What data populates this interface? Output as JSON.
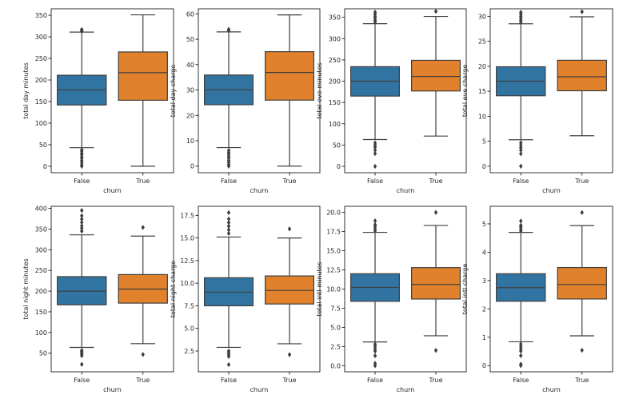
{
  "figure": {
    "type": "boxplot-grid",
    "colors": {
      "False": "#3274a1",
      "True": "#e1812c",
      "line": "#3f3f3f",
      "axes": "#000000"
    }
  },
  "chart_data": [
    {
      "type": "box",
      "xlabel": "churn",
      "ylabel": "total day minutes",
      "categories": [
        "False",
        "True"
      ],
      "ylim": [
        -15,
        365
      ],
      "yticks": [
        0,
        50,
        100,
        150,
        200,
        250,
        300,
        350
      ],
      "ytick_labels": [
        "0",
        "50",
        "100",
        "150",
        "200",
        "250",
        "300",
        "350"
      ],
      "boxes": [
        {
          "category": "False",
          "whislo": 43,
          "q1": 142,
          "med": 177,
          "q3": 211,
          "whishi": 311,
          "fliers": [
            0,
            3,
            8,
            13,
            18,
            22,
            27,
            30,
            35,
            38,
            313,
            315,
            317
          ]
        },
        {
          "category": "True",
          "whislo": 0,
          "q1": 153,
          "med": 217,
          "q3": 265,
          "whishi": 351,
          "fliers": []
        }
      ]
    },
    {
      "type": "box",
      "xlabel": "churn",
      "ylabel": "total day charge",
      "categories": [
        "False",
        "True"
      ],
      "ylim": [
        -2.6,
        62
      ],
      "yticks": [
        0,
        10,
        20,
        30,
        40,
        50,
        60
      ],
      "ytick_labels": [
        "0",
        "10",
        "20",
        "30",
        "40",
        "50",
        "60"
      ],
      "boxes": [
        {
          "category": "False",
          "whislo": 7.3,
          "q1": 24.2,
          "med": 30.1,
          "q3": 35.9,
          "whishi": 52.9,
          "fliers": [
            0,
            0.6,
            1.4,
            2.2,
            3.1,
            3.9,
            4.7,
            5.4,
            6.2,
            53.4,
            53.9
          ]
        },
        {
          "category": "True",
          "whislo": 0,
          "q1": 26,
          "med": 36.9,
          "q3": 45.1,
          "whishi": 59.6,
          "fliers": []
        }
      ]
    },
    {
      "type": "box",
      "xlabel": "churn",
      "ylabel": "total eve minutes",
      "categories": [
        "False",
        "True"
      ],
      "ylim": [
        -15,
        370
      ],
      "yticks": [
        0,
        50,
        100,
        150,
        200,
        250,
        300,
        350
      ],
      "ytick_labels": [
        "0",
        "50",
        "100",
        "150",
        "200",
        "250",
        "300",
        "350"
      ],
      "boxes": [
        {
          "category": "False",
          "whislo": 63,
          "q1": 165,
          "med": 200,
          "q3": 234,
          "whishi": 335,
          "fliers": [
            0,
            30,
            38,
            45,
            50,
            55,
            339,
            343,
            348,
            352,
            357,
            362
          ]
        },
        {
          "category": "True",
          "whislo": 71,
          "q1": 177,
          "med": 211,
          "q3": 249,
          "whishi": 352,
          "fliers": [
            364
          ]
        }
      ]
    },
    {
      "type": "box",
      "xlabel": "churn",
      "ylabel": "total eve charge",
      "categories": [
        "False",
        "True"
      ],
      "ylim": [
        -1.3,
        31.5
      ],
      "yticks": [
        0,
        5,
        10,
        15,
        20,
        25,
        30
      ],
      "ytick_labels": [
        "0",
        "5",
        "10",
        "15",
        "20",
        "25",
        "30"
      ],
      "boxes": [
        {
          "category": "False",
          "whislo": 5.3,
          "q1": 14.1,
          "med": 17,
          "q3": 19.9,
          "whishi": 28.5,
          "fliers": [
            0,
            2.5,
            3.2,
            3.7,
            4.2,
            4.7,
            28.8,
            29.2,
            29.6,
            30,
            30.4,
            30.8
          ]
        },
        {
          "category": "True",
          "whislo": 6.1,
          "q1": 15.1,
          "med": 17.9,
          "q3": 21.2,
          "whishi": 29.9,
          "fliers": [
            30.9
          ]
        }
      ]
    },
    {
      "type": "box",
      "xlabel": "churn",
      "ylabel": "total night minutes",
      "categories": [
        "False",
        "True"
      ],
      "ylim": [
        5,
        405
      ],
      "yticks": [
        50,
        100,
        150,
        200,
        250,
        300,
        350,
        400
      ],
      "ytick_labels": [
        "50",
        "100",
        "150",
        "200",
        "250",
        "300",
        "350",
        "400"
      ],
      "boxes": [
        {
          "category": "False",
          "whislo": 64,
          "q1": 167,
          "med": 200,
          "q3": 235,
          "whishi": 336,
          "fliers": [
            23,
            44,
            48,
            51,
            54,
            57,
            345,
            352,
            358,
            366,
            374,
            382,
            395
          ]
        },
        {
          "category": "True",
          "whislo": 73,
          "q1": 171,
          "med": 205,
          "q3": 240,
          "whishi": 333,
          "fliers": [
            47,
            354
          ]
        }
      ]
    },
    {
      "type": "box",
      "xlabel": "churn",
      "ylabel": "total night charge",
      "categories": [
        "False",
        "True"
      ],
      "ylim": [
        0.2,
        18.5
      ],
      "yticks": [
        2.5,
        5.0,
        7.5,
        10.0,
        12.5,
        15.0,
        17.5
      ],
      "ytick_labels": [
        "2.5",
        "5.0",
        "7.5",
        "10.0",
        "12.5",
        "15.0",
        "17.5"
      ],
      "boxes": [
        {
          "category": "False",
          "whislo": 2.9,
          "q1": 7.5,
          "med": 9.0,
          "q3": 10.6,
          "whishi": 15.1,
          "fliers": [
            1.0,
            1.9,
            2.1,
            2.3,
            2.5,
            15.5,
            15.9,
            16.3,
            16.7,
            17.1,
            17.8
          ]
        },
        {
          "category": "True",
          "whislo": 3.3,
          "q1": 7.7,
          "med": 9.2,
          "q3": 10.8,
          "whishi": 15.0,
          "fliers": [
            2.1,
            16.0
          ]
        }
      ]
    },
    {
      "type": "box",
      "xlabel": "churn",
      "ylabel": "total intl minutes",
      "categories": [
        "False",
        "True"
      ],
      "ylim": [
        -0.8,
        20.8
      ],
      "yticks": [
        0.0,
        2.5,
        5.0,
        7.5,
        10.0,
        12.5,
        15.0,
        17.5,
        20.0
      ],
      "ytick_labels": [
        "0.0",
        "2.5",
        "5.0",
        "7.5",
        "10.0",
        "12.5",
        "15.0",
        "17.5",
        "20.0"
      ],
      "boxes": [
        {
          "category": "False",
          "whislo": 3.1,
          "q1": 8.4,
          "med": 10.2,
          "q3": 12.0,
          "whishi": 17.4,
          "fliers": [
            0,
            0.3,
            1.3,
            1.9,
            2.2,
            2.5,
            2.8,
            17.6,
            17.9,
            18.2,
            18.4,
            18.9
          ]
        },
        {
          "category": "True",
          "whislo": 3.9,
          "q1": 8.7,
          "med": 10.6,
          "q3": 12.8,
          "whishi": 18.3,
          "fliers": [
            2.0,
            20.0
          ]
        }
      ]
    },
    {
      "type": "box",
      "xlabel": "churn",
      "ylabel": "total intl charge",
      "categories": [
        "False",
        "True"
      ],
      "ylim": [
        -0.22,
        5.62
      ],
      "yticks": [
        0,
        1,
        2,
        3,
        4,
        5
      ],
      "ytick_labels": [
        "0",
        "1",
        "2",
        "3",
        "4",
        "5"
      ],
      "boxes": [
        {
          "category": "False",
          "whislo": 0.84,
          "q1": 2.27,
          "med": 2.75,
          "q3": 3.24,
          "whishi": 4.7,
          "fliers": [
            0,
            0.05,
            0.35,
            0.51,
            0.59,
            0.67,
            0.76,
            4.75,
            4.82,
            4.89,
            4.95,
            5.1
          ]
        },
        {
          "category": "True",
          "whislo": 1.05,
          "q1": 2.35,
          "med": 2.86,
          "q3": 3.46,
          "whishi": 4.94,
          "fliers": [
            0.54,
            5.4
          ]
        }
      ]
    }
  ]
}
